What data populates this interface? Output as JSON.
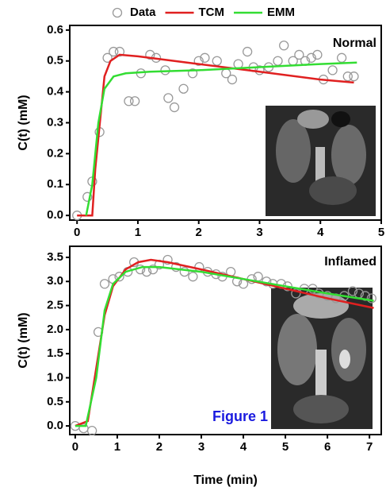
{
  "chart_data": [
    {
      "type": "line",
      "annotation": "Normal",
      "legend": "top",
      "ylabel": "C(t) (mM)",
      "xlim": [
        -0.12,
        5
      ],
      "ylim": [
        -0.015,
        0.615
      ],
      "xticks": [
        0,
        1,
        2,
        3,
        4,
        5
      ],
      "yticks": [
        {
          "value": 0,
          "label": "0.0"
        },
        0.1,
        0.2,
        0.3,
        0.4,
        0.5,
        0.6
      ],
      "series": [
        {
          "name": "Data",
          "style": "markers",
          "color": "#999999",
          "x": [
            0,
            0.17,
            0.25,
            0.37,
            0.5,
            0.6,
            0.7,
            0.85,
            0.95,
            1.05,
            1.2,
            1.3,
            1.45,
            1.5,
            1.6,
            1.75,
            1.9,
            2.0,
            2.1,
            2.3,
            2.45,
            2.55,
            2.65,
            2.8,
            2.9,
            3.0,
            3.15,
            3.3,
            3.4,
            3.55,
            3.65,
            3.75,
            3.85,
            3.95,
            4.05,
            4.2,
            4.35,
            4.45,
            4.55
          ],
          "values": [
            0.0,
            0.06,
            0.11,
            0.27,
            0.51,
            0.53,
            0.53,
            0.37,
            0.37,
            0.46,
            0.52,
            0.51,
            0.47,
            0.38,
            0.35,
            0.41,
            0.46,
            0.5,
            0.51,
            0.5,
            0.46,
            0.44,
            0.49,
            0.53,
            0.48,
            0.47,
            0.48,
            0.5,
            0.55,
            0.5,
            0.52,
            0.5,
            0.51,
            0.52,
            0.44,
            0.47,
            0.51,
            0.45,
            0.45
          ]
        },
        {
          "name": "TCM",
          "style": "line",
          "color": "#e02020",
          "x": [
            0,
            0.25,
            0.3,
            0.45,
            0.55,
            0.7,
            1,
            2,
            3,
            4,
            4.55
          ],
          "values": [
            0,
            0,
            0.15,
            0.45,
            0.5,
            0.52,
            0.515,
            0.49,
            0.465,
            0.44,
            0.43
          ]
        },
        {
          "name": "EMM",
          "style": "line",
          "color": "#33dd33",
          "x": [
            0.15,
            0.25,
            0.35,
            0.45,
            0.6,
            0.8,
            1.2,
            2,
            3,
            4,
            4.6
          ],
          "values": [
            0,
            0.1,
            0.3,
            0.41,
            0.45,
            0.46,
            0.465,
            0.47,
            0.48,
            0.49,
            0.495
          ]
        }
      ]
    },
    {
      "type": "line",
      "annotation": "Inflamed",
      "figure_label": "Figure 1",
      "ylabel": "C(t) (mM)",
      "xlabel": "Time (min)",
      "xlim": [
        -0.13,
        7.28
      ],
      "ylim": [
        -0.18,
        3.73
      ],
      "xticks": [
        0,
        1,
        2,
        3,
        4,
        5,
        6,
        7
      ],
      "yticks": [
        {
          "value": 0,
          "label": "0.0"
        },
        0.5,
        {
          "value": 1,
          "label": "1.0"
        },
        1.5,
        {
          "value": 2,
          "label": "2.0"
        },
        2.5,
        {
          "value": 3,
          "label": "3.0"
        },
        3.5
      ],
      "series": [
        {
          "style": "markers",
          "color": "#999999",
          "x": [
            0,
            0.2,
            0.4,
            0.55,
            0.7,
            0.9,
            1.05,
            1.25,
            1.4,
            1.55,
            1.7,
            1.85,
            2.0,
            2.2,
            2.4,
            2.6,
            2.8,
            2.95,
            3.15,
            3.35,
            3.5,
            3.7,
            3.85,
            4.0,
            4.2,
            4.35,
            4.55,
            4.7,
            4.9,
            5.05,
            5.25,
            5.45,
            5.65,
            5.8,
            6.0,
            6.2,
            6.4,
            6.6,
            6.75,
            6.9,
            7.05
          ],
          "values": [
            0.0,
            -0.05,
            -0.1,
            1.95,
            2.95,
            3.05,
            3.1,
            3.2,
            3.4,
            3.25,
            3.2,
            3.25,
            3.35,
            3.45,
            3.3,
            3.2,
            3.1,
            3.3,
            3.2,
            3.15,
            3.1,
            3.2,
            3.0,
            2.95,
            3.05,
            3.1,
            3.0,
            2.95,
            2.95,
            2.9,
            2.75,
            2.85,
            2.85,
            2.75,
            2.7,
            2.65,
            2.7,
            2.8,
            2.75,
            2.7,
            2.65
          ]
        },
        {
          "style": "line",
          "color": "#e02020",
          "x": [
            0,
            0.3,
            0.5,
            0.7,
            0.9,
            1.2,
            1.5,
            1.8,
            2.2,
            3,
            4,
            5,
            6,
            7.1
          ],
          "values": [
            0,
            0.1,
            1.2,
            2.3,
            2.9,
            3.25,
            3.4,
            3.45,
            3.4,
            3.25,
            3.05,
            2.85,
            2.65,
            2.45
          ]
        },
        {
          "style": "line",
          "color": "#33dd33",
          "x": [
            0,
            0.25,
            0.5,
            0.7,
            0.9,
            1.2,
            1.6,
            2,
            3,
            4,
            5,
            6,
            7.1
          ],
          "values": [
            0,
            0,
            1.0,
            2.4,
            2.95,
            3.2,
            3.3,
            3.3,
            3.2,
            3.05,
            2.9,
            2.75,
            2.6
          ]
        }
      ]
    }
  ]
}
